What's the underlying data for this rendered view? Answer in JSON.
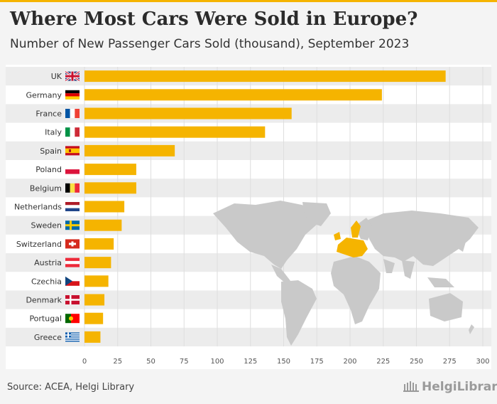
{
  "header": {
    "title": "Where Most Cars Were Sold in Europe?",
    "subtitle": "Number of New Passenger Cars Sold (thousand), September 2023"
  },
  "footer": {
    "source": "Source: ACEA, Helgi Library",
    "logo": "HelgiLibrary."
  },
  "colors": {
    "bar": "#f5b400",
    "map_land": "#c9c9c9",
    "map_highlight": "#f5b400",
    "row_band": "#ececec"
  },
  "chart_data": {
    "type": "bar",
    "orientation": "horizontal",
    "categories": [
      "UK",
      "Germany",
      "France",
      "Italy",
      "Spain",
      "Poland",
      "Belgium",
      "Netherlands",
      "Sweden",
      "Switzerland",
      "Austria",
      "Czechia",
      "Denmark",
      "Portugal",
      "Greece"
    ],
    "values": [
      272,
      224,
      156,
      136,
      68,
      39,
      39,
      30,
      28,
      22,
      20,
      18,
      15,
      14,
      12
    ],
    "flags": [
      "uk-flag",
      "germany-flag",
      "france-flag",
      "italy-flag",
      "spain-flag",
      "poland-flag",
      "belgium-flag",
      "netherlands-flag",
      "sweden-flag",
      "switzerland-flag",
      "austria-flag",
      "czechia-flag",
      "denmark-flag",
      "portugal-flag",
      "greece-flag"
    ],
    "xlim": [
      0,
      300
    ],
    "xticks": [
      0,
      25,
      50,
      75,
      100,
      125,
      150,
      175,
      200,
      225,
      250,
      275,
      300
    ],
    "grid": true,
    "legend": "none"
  }
}
